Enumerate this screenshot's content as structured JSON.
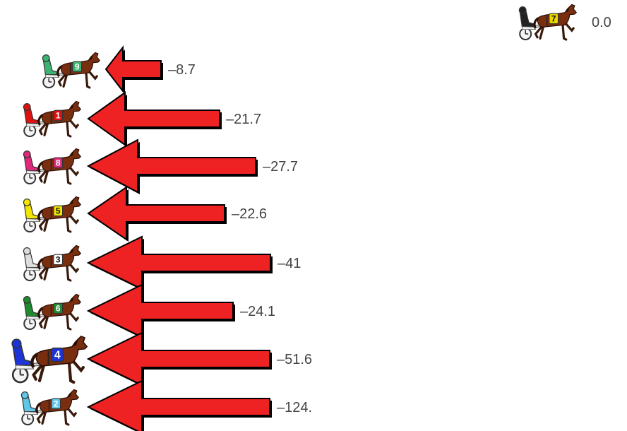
{
  "leader": {
    "horse_number": "7",
    "saddle_color": "#e8d800",
    "driver_color": "#222222",
    "value": "0.0"
  },
  "rows": [
    {
      "horse_number": "9",
      "saddle_color": "#3cb371",
      "driver_color": "#3cb371",
      "value": "–8.7"
    },
    {
      "horse_number": "1",
      "saddle_color": "#dd1111",
      "driver_color": "#dd1111",
      "value": "–21.7"
    },
    {
      "horse_number": "8",
      "saddle_color": "#e0287a",
      "driver_color": "#e0287a",
      "value": "–27.7"
    },
    {
      "horse_number": "5",
      "saddle_color": "#f2e600",
      "driver_color": "#f2e600",
      "value": "–22.6"
    },
    {
      "horse_number": "3",
      "saddle_color": "#ffffff",
      "driver_color": "#dddddd",
      "value": "–41"
    },
    {
      "horse_number": "6",
      "saddle_color": "#1f8a2e",
      "driver_color": "#1f8a2e",
      "value": "–24.1"
    },
    {
      "horse_number": "4",
      "saddle_color": "#1d35d8",
      "driver_color": "#1d35d8",
      "value": "–51.6"
    },
    {
      "horse_number": "2",
      "saddle_color": "#5fc7e8",
      "driver_color": "#5fc7e8",
      "value": "–124."
    }
  ],
  "arrow_color": "#ee2222"
}
